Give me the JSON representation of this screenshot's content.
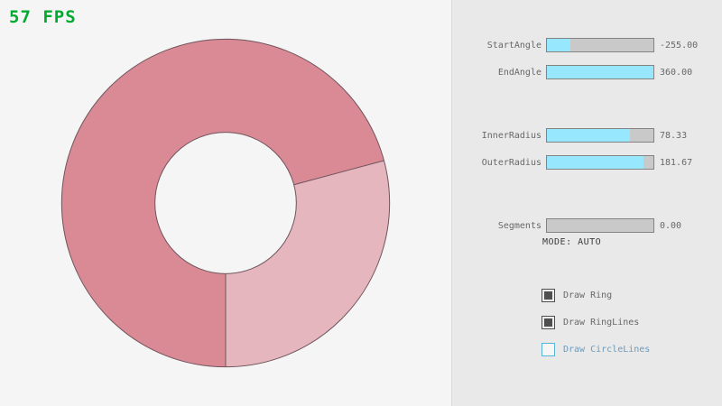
{
  "fps": {
    "text": "57 FPS",
    "color": "#00ab30"
  },
  "ring": {
    "color_dark": "#d98a95",
    "color_light": "#e5b6bd",
    "line_color": "#6f545c"
  },
  "controls": {
    "sliders": [
      {
        "label": "StartAngle",
        "value": "-255.00",
        "fill_pct": 22
      },
      {
        "label": "EndAngle",
        "value": "360.00",
        "fill_pct": 100
      },
      {
        "label": "InnerRadius",
        "value": "78.33",
        "fill_pct": 78
      },
      {
        "label": "OuterRadius",
        "value": "181.67",
        "fill_pct": 91
      },
      {
        "label": "Segments",
        "value": "0.00",
        "fill_pct": 0
      }
    ],
    "mode_text": "MODE: AUTO",
    "checkboxes": [
      {
        "label": "Draw Ring",
        "checked": true,
        "focused": false
      },
      {
        "label": "Draw RingLines",
        "checked": true,
        "focused": false
      },
      {
        "label": "Draw CircleLines",
        "checked": false,
        "focused": true
      }
    ]
  }
}
